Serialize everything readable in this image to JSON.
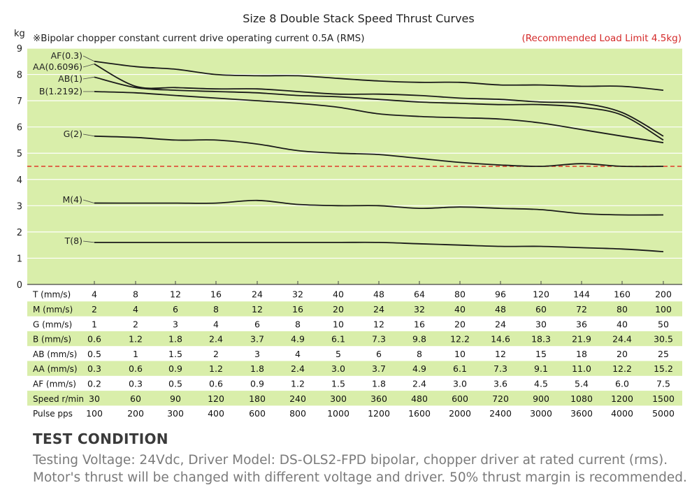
{
  "chart_data": {
    "type": "line",
    "title": "Size 8 Double Stack Speed Thrust Curves",
    "subtitle": "※Bipolar chopper constant current drive operating current 0.5A (RMS)",
    "annotation": "(Recommended Load Limit 4.5kg)",
    "ylabel": "kg",
    "ylim": [
      0,
      9
    ],
    "yticks": [
      "0",
      "1",
      "2",
      "3",
      "4",
      "5",
      "6",
      "7",
      "8",
      "9"
    ],
    "reference_line": {
      "y": 4.5,
      "color": "#e03a2a",
      "style": "dashed"
    },
    "x_index": [
      0,
      1,
      2,
      3,
      4,
      5,
      6,
      7,
      8,
      9,
      10,
      11,
      12,
      13,
      14
    ],
    "series": [
      {
        "name": "AF(0.3)",
        "values": [
          8.5,
          8.3,
          8.2,
          8.0,
          7.95,
          7.95,
          7.85,
          7.75,
          7.7,
          7.7,
          7.6,
          7.6,
          7.55,
          7.55,
          7.4
        ]
      },
      {
        "name": "AA(0.6096)",
        "values": [
          8.4,
          7.55,
          7.5,
          7.45,
          7.45,
          7.35,
          7.25,
          7.25,
          7.2,
          7.1,
          7.05,
          6.95,
          6.9,
          6.55,
          5.65
        ]
      },
      {
        "name": "AB(1)",
        "values": [
          7.9,
          7.5,
          7.4,
          7.35,
          7.3,
          7.2,
          7.15,
          7.05,
          6.95,
          6.9,
          6.85,
          6.85,
          6.75,
          6.45,
          5.5
        ]
      },
      {
        "name": "B(1.2192)",
        "values": [
          7.35,
          7.3,
          7.2,
          7.1,
          7.0,
          6.9,
          6.75,
          6.5,
          6.4,
          6.35,
          6.3,
          6.15,
          5.9,
          5.65,
          5.4
        ]
      },
      {
        "name": "G(2)",
        "values": [
          5.65,
          5.6,
          5.5,
          5.5,
          5.35,
          5.1,
          5.0,
          4.95,
          4.8,
          4.65,
          4.55,
          4.5,
          4.6,
          4.5,
          4.5
        ]
      },
      {
        "name": "M(4)",
        "values": [
          3.1,
          3.1,
          3.1,
          3.1,
          3.2,
          3.05,
          3.0,
          3.0,
          2.9,
          2.95,
          2.9,
          2.85,
          2.7,
          2.65,
          2.65
        ]
      },
      {
        "name": "T(8)",
        "values": [
          1.6,
          1.6,
          1.6,
          1.6,
          1.6,
          1.6,
          1.6,
          1.6,
          1.55,
          1.5,
          1.45,
          1.45,
          1.4,
          1.35,
          1.25
        ]
      }
    ],
    "series_color": "#1a1a1a",
    "plot_background": "#d9eeaa",
    "table": {
      "rows": [
        {
          "label": "T (mm/s)",
          "values": [
            "4",
            "8",
            "12",
            "16",
            "24",
            "32",
            "40",
            "48",
            "64",
            "80",
            "96",
            "120",
            "144",
            "160",
            "200"
          ]
        },
        {
          "label": "M (mm/s)",
          "values": [
            "2",
            "4",
            "6",
            "8",
            "12",
            "16",
            "20",
            "24",
            "32",
            "40",
            "48",
            "60",
            "72",
            "80",
            "100"
          ]
        },
        {
          "label": "G (mm/s)",
          "values": [
            "1",
            "2",
            "3",
            "4",
            "6",
            "8",
            "10",
            "12",
            "16",
            "20",
            "24",
            "30",
            "36",
            "40",
            "50"
          ]
        },
        {
          "label": "B (mm/s)",
          "values": [
            "0.6",
            "1.2",
            "1.8",
            "2.4",
            "3.7",
            "4.9",
            "6.1",
            "7.3",
            "9.8",
            "12.2",
            "14.6",
            "18.3",
            "21.9",
            "24.4",
            "30.5"
          ]
        },
        {
          "label": "AB (mm/s)",
          "values": [
            "0.5",
            "1",
            "1.5",
            "2",
            "3",
            "4",
            "5",
            "6",
            "8",
            "10",
            "12",
            "15",
            "18",
            "20",
            "25"
          ]
        },
        {
          "label": "AA (mm/s)",
          "values": [
            "0.3",
            "0.6",
            "0.9",
            "1.2",
            "1.8",
            "2.4",
            "3.0",
            "3.7",
            "4.9",
            "6.1",
            "7.3",
            "9.1",
            "11.0",
            "12.2",
            "15.2"
          ]
        },
        {
          "label": "AF (mm/s)",
          "values": [
            "0.2",
            "0.3",
            "0.5",
            "0.6",
            "0.9",
            "1.2",
            "1.5",
            "1.8",
            "2.4",
            "3.0",
            "3.6",
            "4.5",
            "5.4",
            "6.0",
            "7.5"
          ]
        },
        {
          "label": "Speed r/min",
          "values": [
            "30",
            "60",
            "90",
            "120",
            "180",
            "240",
            "300",
            "360",
            "480",
            "600",
            "720",
            "900",
            "1080",
            "1200",
            "1500"
          ]
        },
        {
          "label": "Pulse pps",
          "values": [
            "100",
            "200",
            "300",
            "400",
            "600",
            "800",
            "1000",
            "1200",
            "1600",
            "2000",
            "2400",
            "3000",
            "3600",
            "4000",
            "5000"
          ]
        }
      ],
      "shaded_color": "#d9eeaa"
    }
  },
  "test_condition": {
    "heading": "TEST CONDITION",
    "line1": "Testing Voltage: 24Vdc, Driver Model: DS-OLS2-FPD bipolar, chopper driver at rated current (rms).",
    "line2": "Motor's thrust will be changed with different voltage and driver. 50% thrust margin is recommended."
  }
}
